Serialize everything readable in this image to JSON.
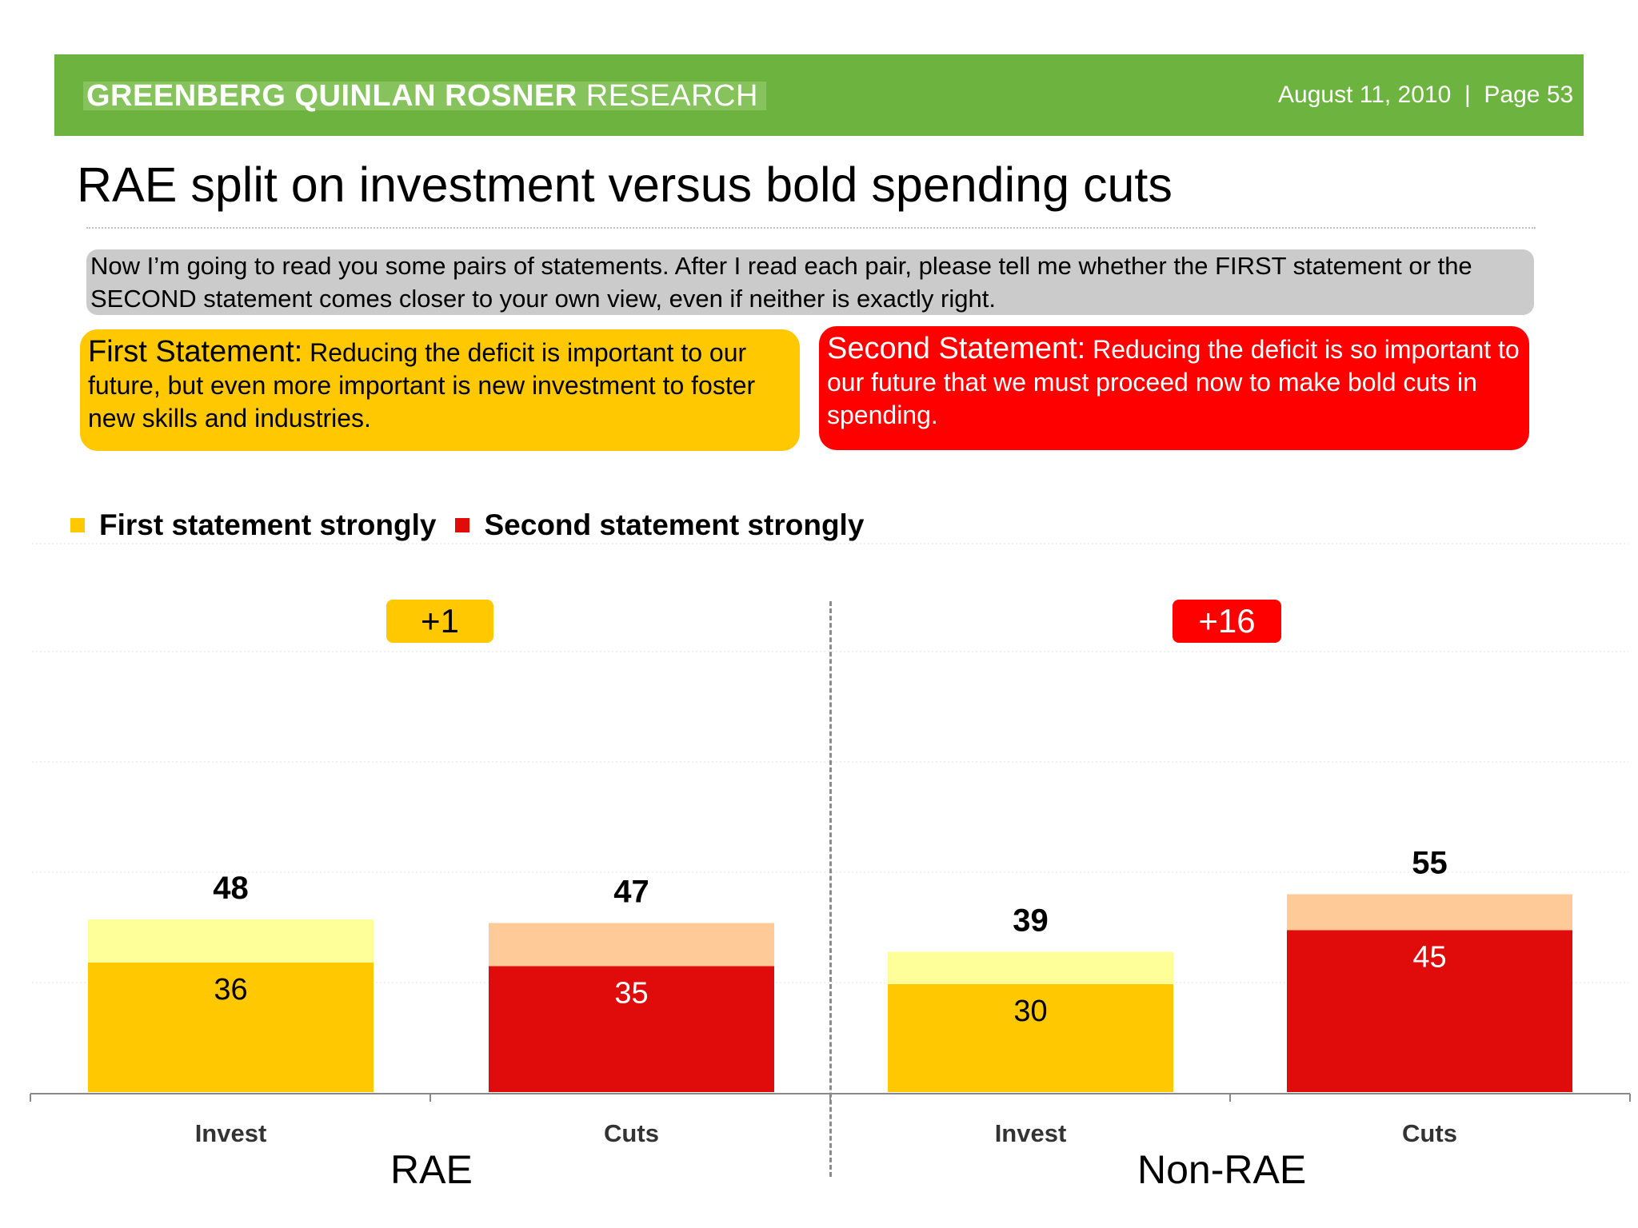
{
  "header": {
    "brand_bold": "GREENBERG QUINLAN ROSNER",
    "brand_light": "RESEARCH",
    "meta": "August 11, 2010  |  Page 53"
  },
  "title": "RAE split on investment versus bold spending cuts",
  "question": "Now I’m going to read you some pairs of statements. After I read each pair, please tell me whether the FIRST statement or the SECOND statement comes closer to your own view, even if neither is exactly right.",
  "statements": {
    "first_label": "First Statement:",
    "first_text": " Reducing the deficit is important to our future, but even more important is new investment to foster new skills and industries.",
    "second_label": "Second Statement:",
    "second_text": " Reducing the deficit is so important to our future that we must proceed now to make bold cuts in spending."
  },
  "colors": {
    "green": "#6db33f",
    "yellow": "#ffc800",
    "light_yellow": "#ffff99",
    "red": "#e00b0b",
    "peach": "#fecb98",
    "bright_red": "#ff0000"
  },
  "chart_data": {
    "type": "bar",
    "stacked": true,
    "legend": [
      "First statement strongly",
      "Second statement strongly"
    ],
    "legend_placement": "top-left",
    "groups": [
      {
        "name": "RAE",
        "difference": "+1",
        "difference_color": "yellow"
      },
      {
        "name": "Non-RAE",
        "difference": "+16",
        "difference_color": "red"
      }
    ],
    "categories": [
      "Invest",
      "Cuts",
      "Invest",
      "Cuts"
    ],
    "category_groups": [
      "RAE",
      "RAE",
      "Non-RAE",
      "Non-RAE"
    ],
    "totals": [
      48,
      47,
      39,
      55
    ],
    "strongly": [
      36,
      35,
      30,
      45
    ],
    "bar_colors": [
      "yellow",
      "red",
      "yellow",
      "red"
    ],
    "ylim": [
      0,
      100
    ],
    "grid": true
  }
}
